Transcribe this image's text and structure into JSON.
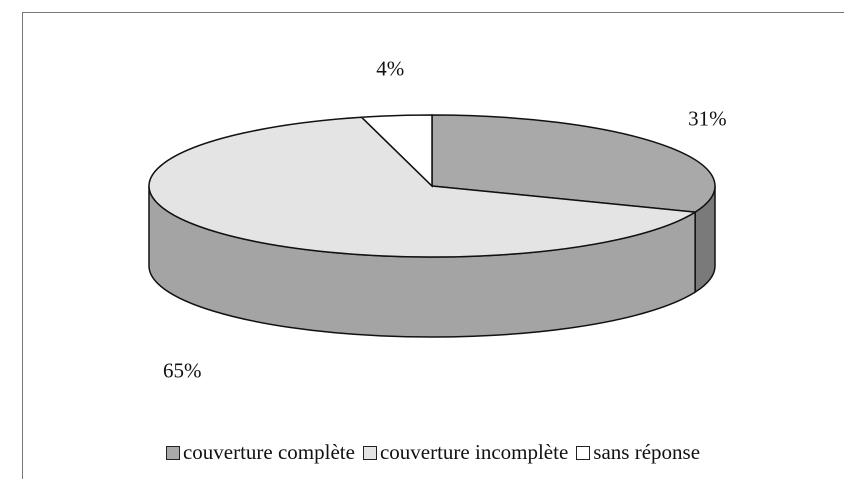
{
  "chart_data": {
    "type": "pie",
    "categories": [
      "couverture complète",
      "couverture incomplète",
      "sans réponse"
    ],
    "values": [
      31,
      65,
      4
    ],
    "value_labels": [
      "31%",
      "65%",
      "4%"
    ],
    "colors": [
      "#a9a9a9",
      "#e4e4e4",
      "#ffffff"
    ],
    "legend": "bottom"
  }
}
